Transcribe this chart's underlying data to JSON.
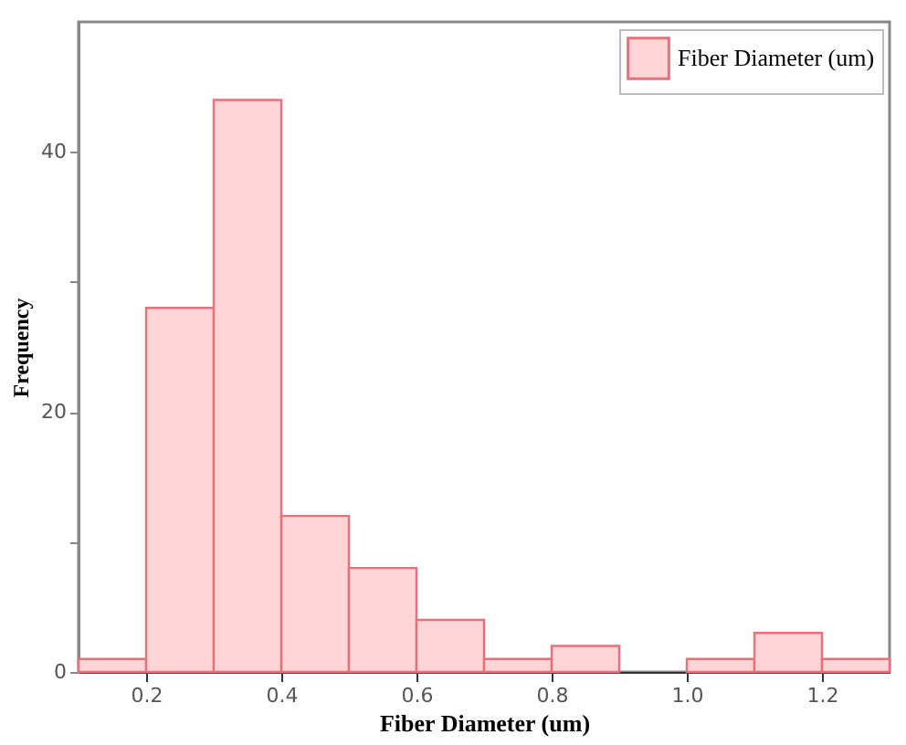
{
  "chart_data": {
    "type": "histogram",
    "xlabel": "Fiber Diameter (um)",
    "ylabel": "Frequency",
    "bins": [
      0.1,
      0.2,
      0.3,
      0.4,
      0.5,
      0.6,
      0.7,
      0.8,
      0.9,
      1.0,
      1.1,
      1.2,
      1.3
    ],
    "series": [
      {
        "name": "Fiber Diameter (um)",
        "color": "#ffd5d8",
        "values": [
          1,
          28,
          44,
          12,
          8,
          4,
          1,
          2,
          0,
          1,
          3,
          1
        ]
      }
    ],
    "xlim": [
      0.1,
      1.3
    ],
    "xticks": [
      0.2,
      0.4,
      0.6,
      0.8,
      {
        "value": 1.0,
        "label": "1.0"
      },
      1.2
    ],
    "ylim": [
      0,
      50
    ],
    "yticks": [
      0,
      {
        "value": 10,
        "label": null
      },
      20,
      {
        "value": 30,
        "label": null
      },
      40
    ],
    "grid": false,
    "legend": "top right"
  }
}
